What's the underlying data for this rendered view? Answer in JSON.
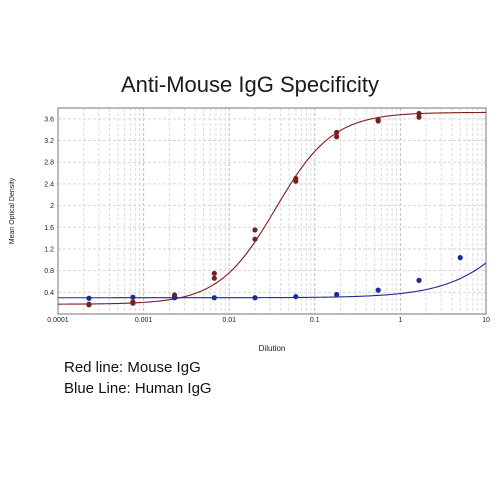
{
  "chart_data": {
    "type": "scatter",
    "title": "Anti-Mouse IgG Specificity",
    "xlabel": "Dilution",
    "ylabel": "Mean Optical Density",
    "xscale": "log",
    "xlim": [
      0.0001,
      10
    ],
    "ylim": [
      0,
      3.8
    ],
    "x_ticks": [
      "0.0001",
      "0.001",
      "0.01",
      "0.1",
      "1",
      "10"
    ],
    "y_ticks": [
      "0.4",
      "0.8",
      "1.2",
      "1.6",
      "2",
      "2.4",
      "2.8",
      "3.2",
      "3.6"
    ],
    "grid": true,
    "series": [
      {
        "color": "#7a1f1f",
        "fit": {
          "bottom": 0.18,
          "top": 3.72,
          "ec50": 0.035,
          "hill": 1.3
        },
        "points": [
          {
            "x": 0.00023,
            "y": 0.18
          },
          {
            "x": 0.00023,
            "y": 0.17
          },
          {
            "x": 0.00075,
            "y": 0.22
          },
          {
            "x": 0.00075,
            "y": 0.2
          },
          {
            "x": 0.0023,
            "y": 0.35
          },
          {
            "x": 0.0023,
            "y": 0.32
          },
          {
            "x": 0.0067,
            "y": 0.75
          },
          {
            "x": 0.0067,
            "y": 0.66
          },
          {
            "x": 0.02,
            "y": 1.55
          },
          {
            "x": 0.02,
            "y": 1.38
          },
          {
            "x": 0.06,
            "y": 2.5
          },
          {
            "x": 0.06,
            "y": 2.45
          },
          {
            "x": 0.18,
            "y": 3.35
          },
          {
            "x": 0.18,
            "y": 3.27
          },
          {
            "x": 0.55,
            "y": 3.58
          },
          {
            "x": 0.55,
            "y": 3.56
          },
          {
            "x": 1.65,
            "y": 3.7
          },
          {
            "x": 1.65,
            "y": 3.63
          }
        ]
      },
      {
        "color": "#1f2a99",
        "fit": {
          "bottom": 0.3,
          "top": 3.7,
          "ec50": 43,
          "hill": 1.0
        },
        "points": [
          {
            "x": 0.00023,
            "y": 0.29
          },
          {
            "x": 0.00075,
            "y": 0.31
          },
          {
            "x": 0.0023,
            "y": 0.3
          },
          {
            "x": 0.0067,
            "y": 0.3
          },
          {
            "x": 0.02,
            "y": 0.3
          },
          {
            "x": 0.06,
            "y": 0.32
          },
          {
            "x": 0.18,
            "y": 0.36
          },
          {
            "x": 0.55,
            "y": 0.44
          },
          {
            "x": 1.65,
            "y": 0.62
          },
          {
            "x": 5,
            "y": 1.04
          }
        ]
      }
    ]
  },
  "legend": {
    "red": "Red line: Mouse IgG",
    "blue": "Blue Line: Human IgG"
  }
}
